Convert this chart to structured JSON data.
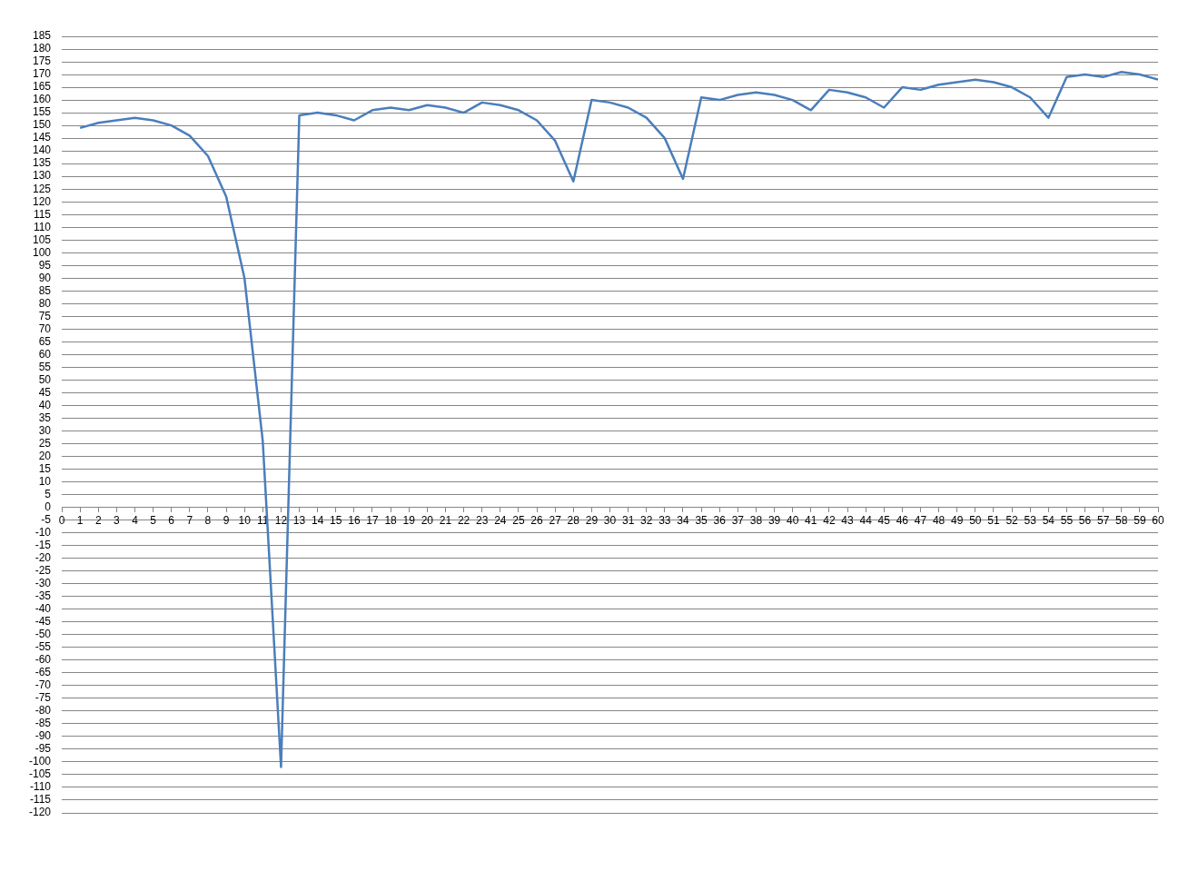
{
  "chart_data": {
    "type": "line",
    "x": [
      1,
      2,
      3,
      4,
      5,
      6,
      7,
      8,
      9,
      10,
      11,
      12,
      13,
      14,
      15,
      16,
      17,
      18,
      19,
      20,
      21,
      22,
      23,
      24,
      25,
      26,
      27,
      28,
      29,
      30,
      31,
      32,
      33,
      34,
      35,
      36,
      37,
      38,
      39,
      40,
      41,
      42,
      43,
      44,
      45,
      46,
      47,
      48,
      49,
      50,
      51,
      52,
      53,
      54,
      55,
      56,
      57,
      58,
      59,
      60
    ],
    "series": [
      {
        "color": "#4a7ebb",
        "values": [
          149,
          151,
          152,
          153,
          152,
          150,
          146,
          138,
          122,
          90,
          26,
          -102,
          154,
          155,
          154,
          152,
          156,
          157,
          156,
          158,
          157,
          155,
          159,
          158,
          156,
          152,
          144,
          128,
          160,
          159,
          157,
          153,
          145,
          129,
          161,
          160,
          162,
          163,
          162,
          160,
          156,
          164,
          163,
          161,
          157,
          165,
          164,
          166,
          167,
          168,
          167,
          165,
          161,
          153,
          169,
          170,
          169,
          171,
          170,
          168
        ]
      }
    ],
    "xlim": [
      0,
      60
    ],
    "xticks": [
      0,
      1,
      2,
      3,
      4,
      5,
      6,
      7,
      8,
      9,
      10,
      11,
      12,
      13,
      14,
      15,
      16,
      17,
      18,
      19,
      20,
      21,
      22,
      23,
      24,
      25,
      26,
      27,
      28,
      29,
      30,
      31,
      32,
      33,
      34,
      35,
      36,
      37,
      38,
      39,
      40,
      41,
      42,
      43,
      44,
      45,
      46,
      47,
      48,
      49,
      50,
      51,
      52,
      53,
      54,
      55,
      56,
      57,
      58,
      59,
      60
    ],
    "ylim": [
      -120,
      185
    ],
    "yticks": [
      -120,
      -115,
      -110,
      -105,
      -100,
      -95,
      -90,
      -85,
      -80,
      -75,
      -70,
      -65,
      -60,
      -55,
      -50,
      -45,
      -40,
      -35,
      -30,
      -25,
      -20,
      -15,
      -10,
      -5,
      0,
      5,
      10,
      15,
      20,
      25,
      30,
      35,
      40,
      45,
      50,
      55,
      60,
      65,
      70,
      75,
      80,
      85,
      90,
      95,
      100,
      105,
      110,
      115,
      120,
      125,
      130,
      135,
      140,
      145,
      150,
      155,
      160,
      165,
      170,
      175,
      180,
      185
    ],
    "grid": "y",
    "marker": "none"
  }
}
